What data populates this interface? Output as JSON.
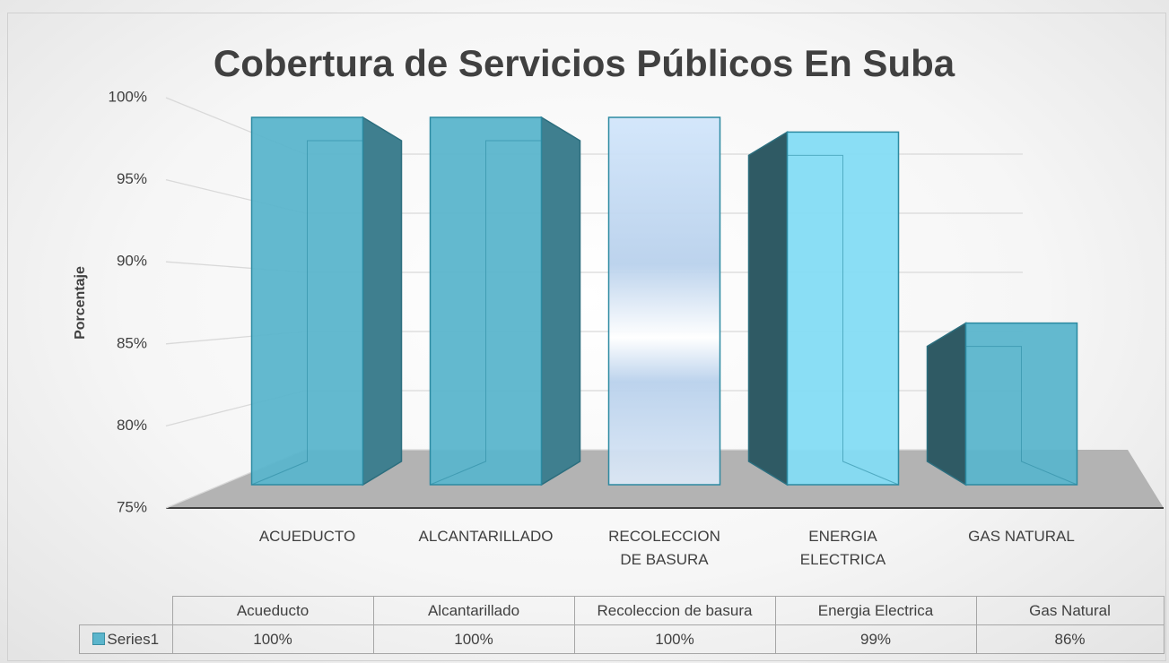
{
  "chart_data": {
    "type": "bar3d",
    "title": "Cobertura de Servicios Públicos En Suba",
    "y_label": "Porcentaje",
    "categories": [
      "ACUEDUCTO",
      "ALCANTARILLADO",
      "RECOLECCION DE BASURA",
      "ENERGIA ELECTRICA",
      "GAS NATURAL"
    ],
    "series": [
      {
        "name": "Series1",
        "color": "#5bb5cc",
        "values": [
          100,
          100,
          100,
          99,
          86
        ],
        "value_labels": [
          "100%",
          "100%",
          "100%",
          "99%",
          "86%"
        ]
      }
    ],
    "colors": [
      "#5bb5cc",
      "#5bb5cc",
      "#c9dcf2",
      "#84dcf4",
      "#5bb5cc"
    ],
    "ylim": [
      75,
      100
    ],
    "yticks": [
      {
        "value": 75,
        "label": "75%"
      },
      {
        "value": 80,
        "label": "80%"
      },
      {
        "value": 85,
        "label": "85%"
      },
      {
        "value": 90,
        "label": "90%"
      },
      {
        "value": 95,
        "label": "95%"
      },
      {
        "value": 100,
        "label": "100%"
      }
    ],
    "grid": true,
    "data_table": {
      "headers": [
        "Acueducto",
        "Alcantarillado",
        "Recoleccion de basura",
        "Energia Electrica",
        "Gas Natural"
      ]
    }
  }
}
